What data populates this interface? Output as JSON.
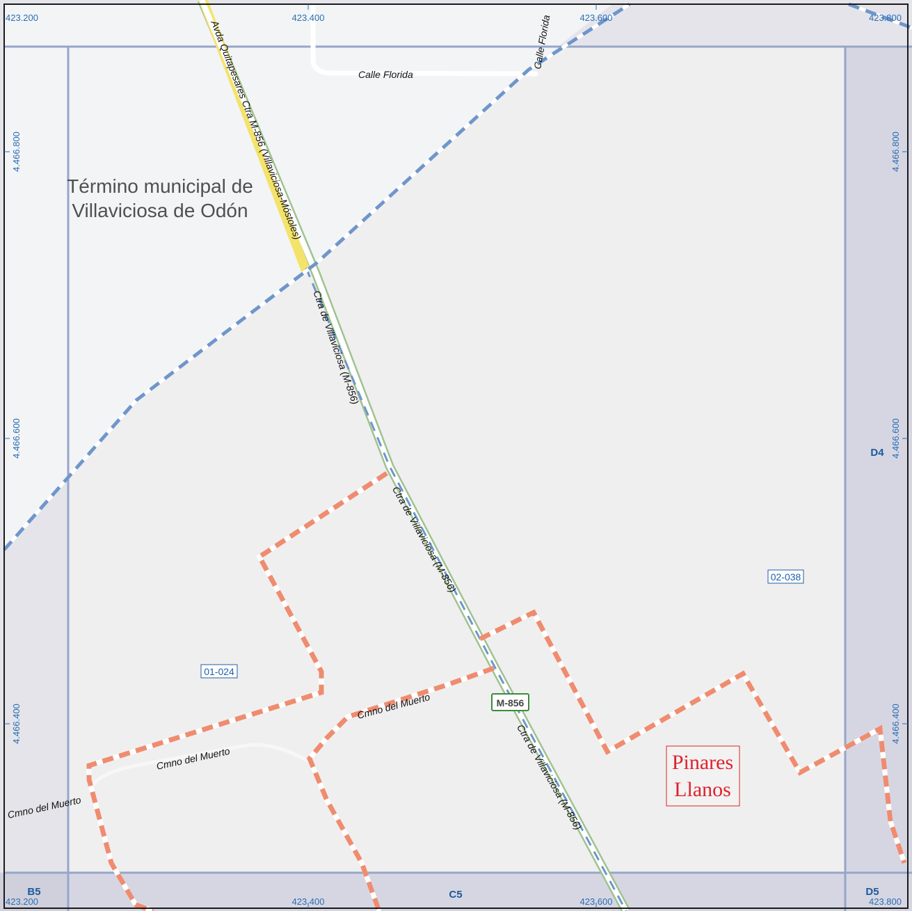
{
  "colors": {
    "sheet_background": "#efefef",
    "outer_band": "#e4e4ea",
    "margin_band": "#d6d6e3",
    "grid_line": "#96a6c9",
    "coordinate_text": "#2a6fb3",
    "grid_cell_label": "#1a5a9c",
    "municipal_boundary": "#6f96cb",
    "district_boundary": "#ef8c70",
    "main_road_fill": "#ffffff",
    "main_road_edge_west": "#f3e36b",
    "main_road_edge_east": "#9fc28f",
    "street": "#ffffff",
    "path": "#f7f7f7",
    "place_name": "#e0212b",
    "municipality_label": "#505050",
    "section_code": "#1f5fa8",
    "road_shield": "#3a8c3a"
  },
  "coordinates": {
    "x_ticks_top": [
      "423.200",
      "423.400",
      "423.600",
      "423.800"
    ],
    "x_ticks_bottom": [
      "423.200",
      "423.400",
      "423.600",
      "423.800"
    ],
    "y_ticks_left": [
      "4.466.800",
      "4.466.600",
      "4.466.400"
    ],
    "y_ticks_right": [
      "4.466.800",
      "4.466.600",
      "4.466.400"
    ]
  },
  "grid_cells": {
    "right": "D4",
    "bottom_left": "B5",
    "bottom_center": "C5",
    "bottom_right": "D5"
  },
  "labels": {
    "municipality_line1": "Término municipal de",
    "municipality_line2": "Villaviciosa de Odón",
    "place_name_line1": "Pinares",
    "place_name_line2": "Llanos"
  },
  "sections": [
    "02-038",
    "01-024"
  ],
  "road_shield": "M-856",
  "street_labels": {
    "avda": "Avda Quitapesares Ctra M-856 (Villaviciosa-Móstoles)",
    "ctra_1": "Ctra de Villaviciosa (M-856)",
    "ctra_2": "Ctra de Villaviciosa (M-856)",
    "ctra_3": "Ctra de Villaviciosa (M-856)",
    "calle_florida_h": "Calle Florida",
    "calle_florida_v": "Calle Florida",
    "cmno_1": "Cmno del Muerto",
    "cmno_2": "Cmno del Muerto",
    "cmno_3": "Cmno del Muerto"
  }
}
